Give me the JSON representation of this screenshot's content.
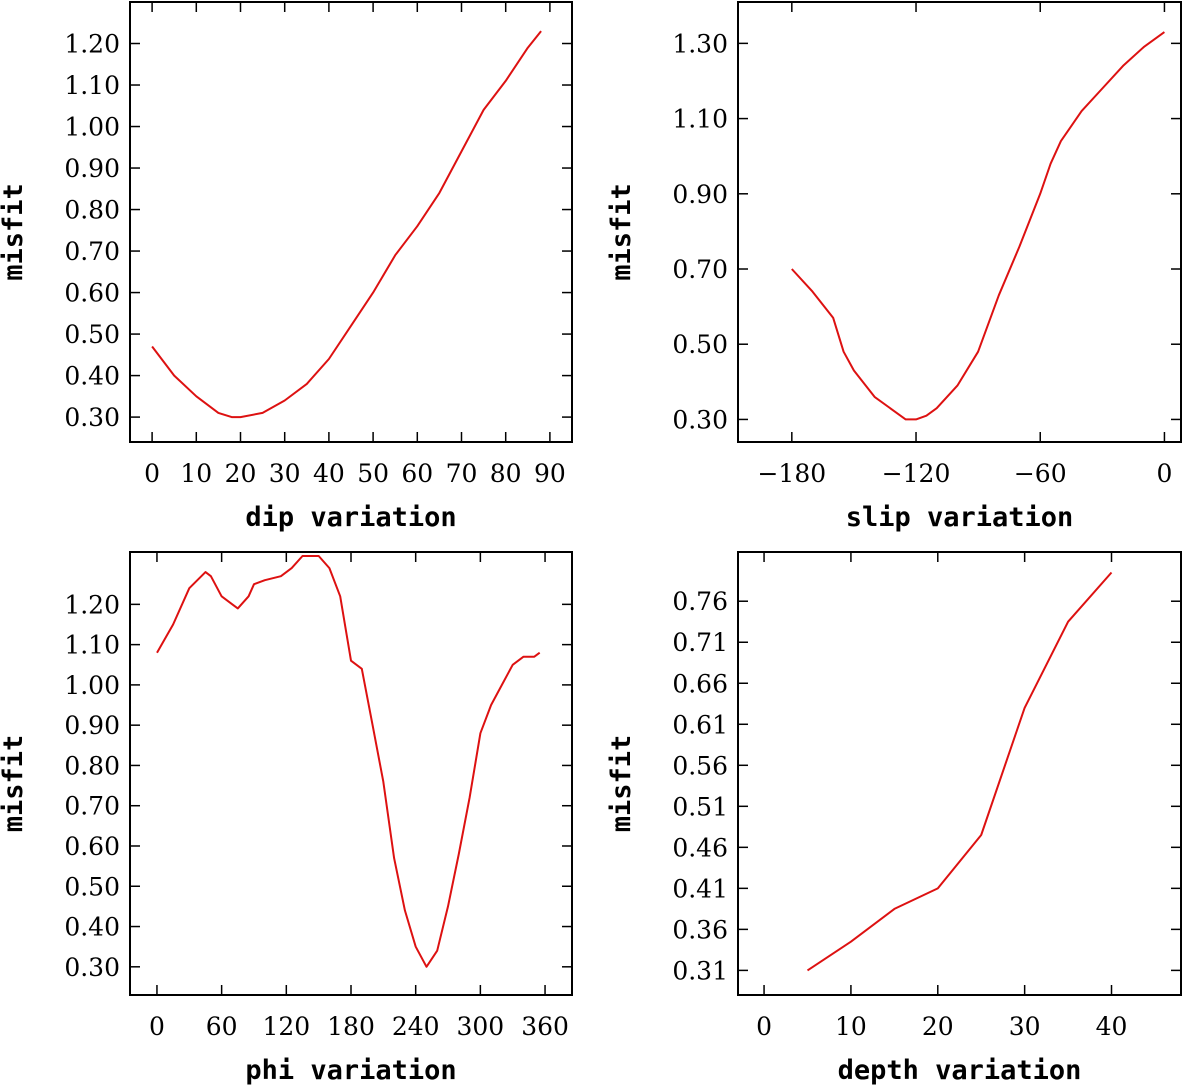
{
  "colors": {
    "curve": "#dd1111",
    "axes": "#000000",
    "background": "#ffffff"
  },
  "chart_data": [
    {
      "type": "line",
      "xlabel": "dip    variation",
      "ylabel": "misfit",
      "xlim": [
        -5,
        95
      ],
      "ylim": [
        0.24,
        1.3
      ],
      "x_ticks": [
        0,
        10,
        20,
        30,
        40,
        50,
        60,
        70,
        80,
        90
      ],
      "x_tick_labels": [
        "0",
        "10",
        "20",
        "30",
        "40",
        "50",
        "60",
        "70",
        "80",
        "90"
      ],
      "y_ticks": [
        0.3,
        0.4,
        0.5,
        0.6,
        0.7,
        0.8,
        0.9,
        1.0,
        1.1,
        1.2
      ],
      "y_tick_labels": [
        "0.30",
        "0.40",
        "0.50",
        "0.60",
        "0.70",
        "0.80",
        "0.90",
        "1.00",
        "1.10",
        "1.20"
      ],
      "x": [
        0,
        5,
        10,
        15,
        18,
        20,
        25,
        30,
        35,
        40,
        45,
        50,
        55,
        60,
        65,
        70,
        75,
        80,
        85,
        88
      ],
      "y": [
        0.47,
        0.4,
        0.35,
        0.31,
        0.3,
        0.3,
        0.31,
        0.34,
        0.38,
        0.44,
        0.52,
        0.6,
        0.69,
        0.76,
        0.84,
        0.94,
        1.04,
        1.11,
        1.19,
        1.23
      ]
    },
    {
      "type": "line",
      "xlabel": "slip   variation",
      "ylabel": "misfit",
      "xlim": [
        -206,
        8
      ],
      "ylim": [
        0.24,
        1.41
      ],
      "x_ticks": [
        -180,
        -120,
        -60,
        0
      ],
      "x_tick_labels": [
        "−180",
        "−120",
        "−60",
        "0"
      ],
      "y_ticks": [
        0.3,
        0.5,
        0.7,
        0.9,
        1.1,
        1.3
      ],
      "y_tick_labels": [
        "0.30",
        "0.50",
        "0.70",
        "0.90",
        "1.10",
        "1.30"
      ],
      "x": [
        -180,
        -170,
        -160,
        -155,
        -150,
        -140,
        -130,
        -125,
        -120,
        -115,
        -110,
        -100,
        -90,
        -80,
        -70,
        -60,
        -55,
        -50,
        -40,
        -30,
        -20,
        -10,
        0
      ],
      "y": [
        0.7,
        0.64,
        0.57,
        0.48,
        0.43,
        0.36,
        0.32,
        0.3,
        0.3,
        0.31,
        0.33,
        0.39,
        0.48,
        0.63,
        0.76,
        0.9,
        0.98,
        1.04,
        1.12,
        1.18,
        1.24,
        1.29,
        1.33
      ]
    },
    {
      "type": "line",
      "xlabel": "phi    variation",
      "ylabel": "misfit",
      "xlim": [
        -25,
        385
      ],
      "ylim": [
        0.23,
        1.33
      ],
      "x_ticks": [
        0,
        60,
        120,
        180,
        240,
        300,
        360
      ],
      "x_tick_labels": [
        "0",
        "60",
        "120",
        "180",
        "240",
        "300",
        "360"
      ],
      "y_ticks": [
        0.3,
        0.4,
        0.5,
        0.6,
        0.7,
        0.8,
        0.9,
        1.0,
        1.1,
        1.2
      ],
      "y_tick_labels": [
        "0.30",
        "0.40",
        "0.50",
        "0.60",
        "0.70",
        "0.80",
        "0.90",
        "1.00",
        "1.10",
        "1.20"
      ],
      "x": [
        0,
        15,
        30,
        45,
        50,
        60,
        70,
        75,
        85,
        90,
        100,
        115,
        125,
        135,
        150,
        160,
        170,
        180,
        190,
        200,
        210,
        220,
        230,
        240,
        250,
        260,
        270,
        280,
        290,
        300,
        310,
        320,
        330,
        340,
        350,
        355
      ],
      "y": [
        1.08,
        1.15,
        1.24,
        1.28,
        1.27,
        1.22,
        1.2,
        1.19,
        1.22,
        1.25,
        1.26,
        1.27,
        1.29,
        1.32,
        1.32,
        1.29,
        1.22,
        1.06,
        1.04,
        0.9,
        0.76,
        0.57,
        0.44,
        0.35,
        0.3,
        0.34,
        0.45,
        0.58,
        0.72,
        0.88,
        0.95,
        1.0,
        1.05,
        1.07,
        1.07,
        1.08
      ]
    },
    {
      "type": "line",
      "xlabel": "depth  variation",
      "ylabel": "misfit",
      "xlim": [
        -3,
        48
      ],
      "ylim": [
        0.28,
        0.82
      ],
      "x_ticks": [
        0,
        10,
        20,
        30,
        40
      ],
      "x_tick_labels": [
        "0",
        "10",
        "20",
        "30",
        "40"
      ],
      "y_ticks": [
        0.31,
        0.36,
        0.41,
        0.46,
        0.51,
        0.56,
        0.61,
        0.66,
        0.71,
        0.76
      ],
      "y_tick_labels": [
        "0.31",
        "0.36",
        "0.41",
        "0.46",
        "0.51",
        "0.56",
        "0.61",
        "0.66",
        "0.71",
        "0.76"
      ],
      "x": [
        5,
        10,
        15,
        20,
        25,
        30,
        35,
        40
      ],
      "y": [
        0.31,
        0.345,
        0.385,
        0.41,
        0.475,
        0.63,
        0.735,
        0.795
      ]
    }
  ]
}
